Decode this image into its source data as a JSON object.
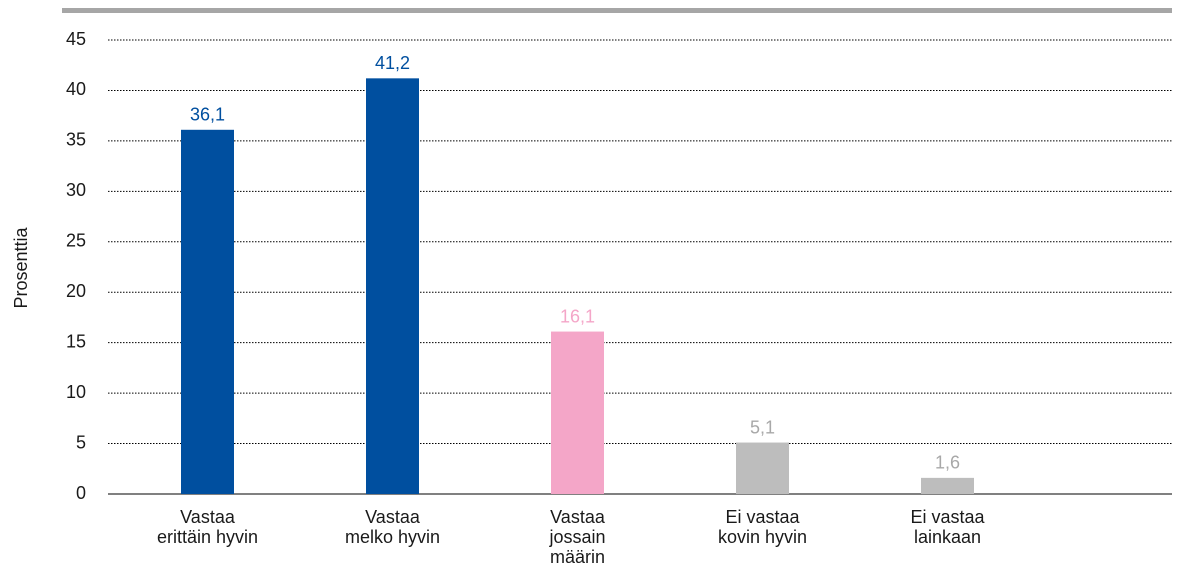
{
  "chart_data": {
    "type": "bar",
    "y_label": "Prosenttia",
    "categories": [
      [
        "Vastaa",
        "erittäin hyvin"
      ],
      [
        "Vastaa",
        "melko hyvin"
      ],
      [
        "Vastaa",
        "jossain",
        "määrin"
      ],
      [
        "Ei vastaa",
        "kovin hyvin"
      ],
      [
        "Ei vastaa",
        "lainkaan"
      ]
    ],
    "values": [
      36.1,
      41.2,
      16.1,
      5.1,
      1.6
    ],
    "value_labels": [
      "36,1",
      "41,2",
      "16,1",
      "5,1",
      "1,6"
    ],
    "colors": [
      "#004f9f",
      "#004f9f",
      "#f4a6c8",
      "#bdbdbd",
      "#bdbdbd"
    ],
    "label_colors": [
      "#004f9f",
      "#004f9f",
      "#f4a6c8",
      "#a8a8a8",
      "#a8a8a8"
    ],
    "ylim": [
      0,
      45
    ],
    "yticks": [
      0,
      5,
      10,
      15,
      20,
      25,
      30,
      35,
      40,
      45
    ],
    "grid": true
  }
}
